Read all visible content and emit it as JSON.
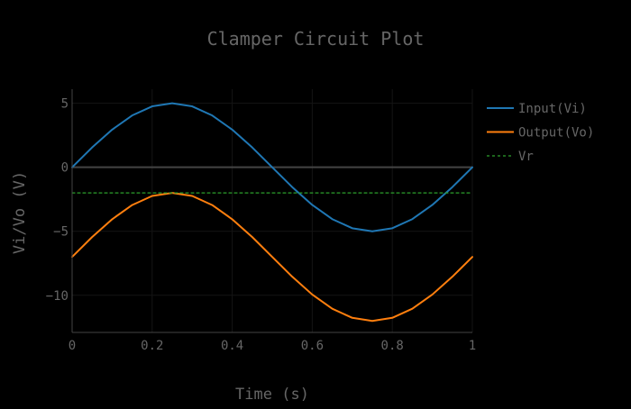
{
  "chart_data": {
    "type": "line",
    "title": "Clamper Circuit Plot",
    "xlabel": "Time (s)",
    "ylabel": "Vi/Vo (V)",
    "xlim": [
      0,
      1
    ],
    "ylim": [
      -12.9,
      6.1
    ],
    "x_ticks": [
      0,
      0.2,
      0.4,
      0.6,
      0.8,
      1
    ],
    "x_tick_labels": [
      "0",
      "0.2",
      "0.4",
      "0.6",
      "0.8",
      "1"
    ],
    "y_ticks": [
      -10,
      -5,
      0,
      5
    ],
    "y_tick_labels": [
      "−10",
      "−5",
      "0",
      "5"
    ],
    "grid": true,
    "legend_position": "top-right",
    "x": [
      0,
      0.05,
      0.1,
      0.15,
      0.2,
      0.25,
      0.3,
      0.35,
      0.4,
      0.45,
      0.5,
      0.55,
      0.6,
      0.65,
      0.7,
      0.75,
      0.8,
      0.85,
      0.9,
      0.95,
      1
    ],
    "series": [
      {
        "name": "Input(Vi)",
        "color": "#1f77b4",
        "dash": "solid",
        "values": [
          0,
          1.55,
          2.94,
          4.05,
          4.76,
          5,
          4.76,
          4.05,
          2.94,
          1.55,
          0,
          -1.55,
          -2.94,
          -4.05,
          -4.76,
          -5,
          -4.76,
          -4.05,
          -2.94,
          -1.55,
          0
        ]
      },
      {
        "name": "Output(Vo)",
        "color": "#ff7f0e",
        "dash": "solid",
        "values": [
          -7,
          -5.45,
          -4.06,
          -2.95,
          -2.24,
          -2,
          -2.24,
          -2.95,
          -4.06,
          -5.45,
          -7,
          -8.55,
          -9.94,
          -11.05,
          -11.76,
          -12,
          -11.76,
          -11.05,
          -9.94,
          -8.55,
          -7
        ]
      },
      {
        "name": "Vr",
        "color": "#2ca02c",
        "dash": "dot",
        "values": [
          -2,
          -2,
          -2,
          -2,
          -2,
          -2,
          -2,
          -2,
          -2,
          -2,
          -2,
          -2,
          -2,
          -2,
          -2,
          -2,
          -2,
          -2,
          -2,
          -2,
          -2
        ]
      }
    ]
  }
}
